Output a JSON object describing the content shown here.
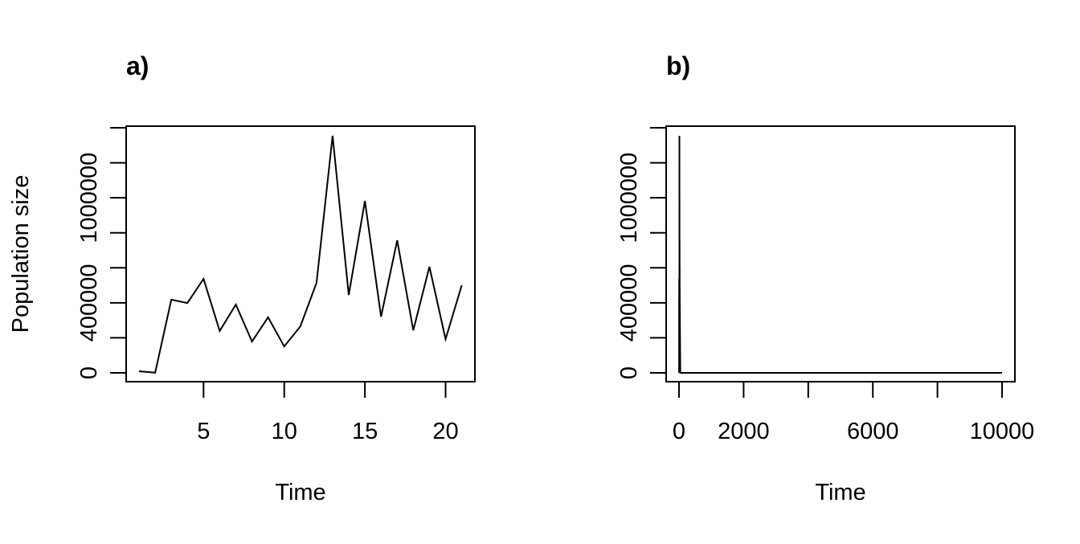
{
  "figure": {
    "panels": [
      {
        "title": "a)",
        "xlabel": "Time",
        "ylabel": "Population size"
      },
      {
        "title": "b)",
        "xlabel": "Time",
        "ylabel": ""
      }
    ]
  },
  "chart_data": [
    {
      "type": "line",
      "title": "a)",
      "xlabel": "Time",
      "ylabel": "Population size",
      "x": [
        1,
        2,
        3,
        4,
        5,
        6,
        7,
        8,
        9,
        10,
        11,
        12,
        13,
        14,
        15,
        16,
        17,
        18,
        19,
        20,
        21
      ],
      "series": [
        {
          "name": "Population size",
          "color": "#000000",
          "values": [
            9000,
            1000,
            418000,
            399000,
            537000,
            239000,
            390000,
            179000,
            317000,
            151000,
            266000,
            514000,
            1354000,
            445000,
            982000,
            321000,
            757000,
            243000,
            606000,
            193000,
            500000
          ]
        }
      ],
      "xlim": [
        0.2,
        21.8
      ],
      "ylim": [
        -50000,
        1400000
      ],
      "xticks": [
        5,
        10,
        15,
        20
      ],
      "xtick_labels": [
        "5",
        "10",
        "15",
        "20"
      ],
      "yticks": [
        0,
        200000,
        400000,
        600000,
        800000,
        1000000,
        1200000,
        1400000
      ],
      "ytick_labels": [
        "0",
        "",
        "400000",
        "",
        "",
        "1000000",
        "",
        ""
      ],
      "grid": false,
      "legend": null
    },
    {
      "type": "line",
      "title": "b)",
      "xlabel": "Time",
      "ylabel": "",
      "x_note": "Same series as panel a for t=1..21, then population stays at ~0 through t=10000",
      "x": [
        1,
        2,
        3,
        4,
        5,
        6,
        7,
        8,
        9,
        10,
        11,
        12,
        13,
        14,
        15,
        16,
        17,
        18,
        19,
        20,
        21,
        40,
        100,
        10000
      ],
      "series": [
        {
          "name": "Population size",
          "color": "#000000",
          "values": [
            9000,
            1000,
            418000,
            399000,
            537000,
            239000,
            390000,
            179000,
            317000,
            151000,
            266000,
            514000,
            1354000,
            445000,
            982000,
            321000,
            757000,
            243000,
            606000,
            193000,
            500000,
            0,
            0,
            0
          ]
        }
      ],
      "xlim": [
        -400,
        10400
      ],
      "ylim": [
        -50000,
        1400000
      ],
      "xticks": [
        0,
        2000,
        4000,
        6000,
        8000,
        10000
      ],
      "xtick_labels": [
        "0",
        "2000",
        "",
        "6000",
        "",
        "10000"
      ],
      "yticks": [
        0,
        200000,
        400000,
        600000,
        800000,
        1000000,
        1200000,
        1400000
      ],
      "ytick_labels": [
        "0",
        "",
        "400000",
        "",
        "",
        "1000000",
        "",
        ""
      ],
      "grid": false,
      "legend": null
    }
  ]
}
